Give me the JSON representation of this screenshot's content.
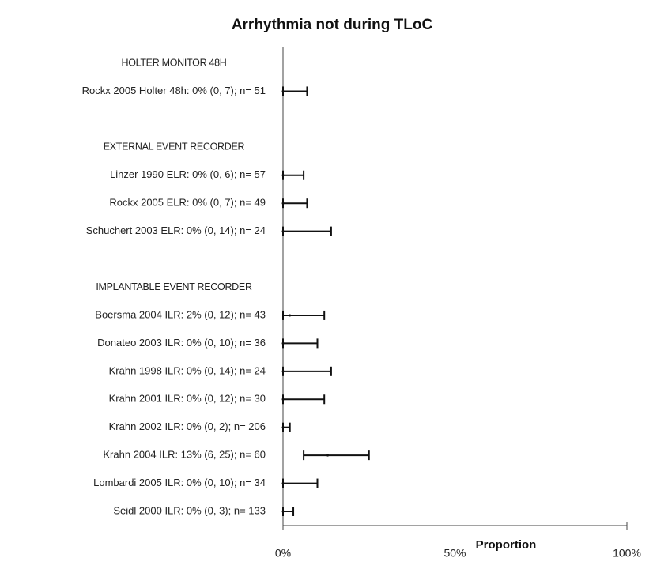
{
  "chart_data": {
    "type": "forest",
    "title": "Arrhythmia not during TLoC",
    "x_label": "Proportion",
    "categories": [
      "HOLTER MONITOR 48H",
      "Rockx 2005 Holter 48h: 0% (0, 7); n= 51",
      null,
      "EXTERNAL EVENT RECORDER",
      "Linzer 1990 ELR: 0% (0, 6); n= 57",
      "Rockx 2005 ELR: 0% (0, 7); n= 49",
      "Schuchert 2003 ELR: 0% (0, 14); n= 24",
      null,
      "IMPLANTABLE EVENT RECORDER",
      "Boersma 2004 ILR: 2% (0, 12); n= 43",
      "Donateo 2003 ILR: 0% (0, 10); n= 36",
      "Krahn 1998 ILR: 0% (0, 14); n= 24",
      "Krahn 2001 ILR: 0% (0, 12); n= 30",
      "Krahn 2002 ILR: 0% (0, 2); n= 206",
      "Krahn 2004 ILR: 13% (6, 25); n= 60",
      "Lombardi 2005 ILR: 0% (0, 10); n= 34",
      "Seidl 2000 ILR: 0% (0, 3); n= 133"
    ],
    "values": [
      null,
      0,
      null,
      null,
      0,
      0,
      0,
      null,
      null,
      2,
      0,
      0,
      0,
      0,
      13,
      0,
      0
    ],
    "ci_low": [
      null,
      0,
      null,
      null,
      0,
      0,
      0,
      null,
      null,
      0,
      0,
      0,
      0,
      0,
      6,
      0,
      0
    ],
    "ci_high": [
      null,
      7,
      null,
      null,
      6,
      7,
      14,
      null,
      null,
      12,
      10,
      14,
      12,
      2,
      25,
      10,
      3
    ],
    "color": "#111111",
    "xlim": [
      0,
      100
    ],
    "xticks": [
      {
        "value": 0,
        "label": "0%"
      },
      {
        "value": 50,
        "label": "50%"
      },
      {
        "value": 100,
        "label": "100%"
      }
    ]
  }
}
